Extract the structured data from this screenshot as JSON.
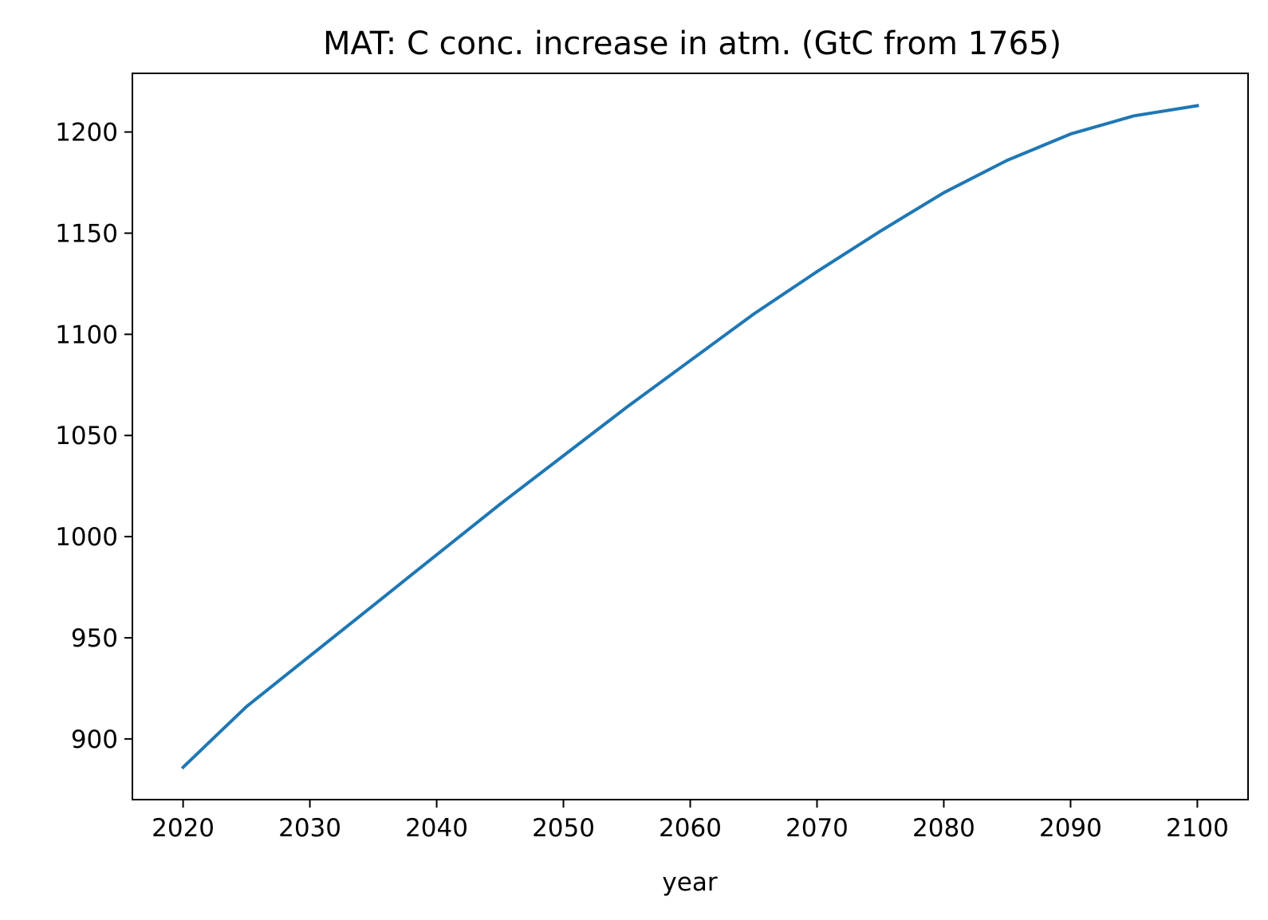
{
  "chart_data": {
    "type": "line",
    "title": "MAT: C conc. increase in atm. (GtC from 1765)",
    "xlabel": "year",
    "ylabel": "",
    "xlim": [
      2016,
      2104
    ],
    "ylim": [
      870,
      1229
    ],
    "xticks": [
      2020,
      2030,
      2040,
      2050,
      2060,
      2070,
      2080,
      2090,
      2100
    ],
    "yticks": [
      900,
      950,
      1000,
      1050,
      1100,
      1150,
      1200
    ],
    "grid": false,
    "legend": "none",
    "series": [
      {
        "color": "#1f77b4",
        "x": [
          2020,
          2025,
          2030,
          2035,
          2040,
          2045,
          2050,
          2055,
          2060,
          2065,
          2070,
          2075,
          2080,
          2085,
          2090,
          2095,
          2100
        ],
        "y": [
          886,
          916,
          941,
          966,
          991,
          1016,
          1040,
          1064,
          1087,
          1110,
          1131,
          1151,
          1170,
          1186,
          1199,
          1208,
          1213
        ]
      }
    ]
  }
}
